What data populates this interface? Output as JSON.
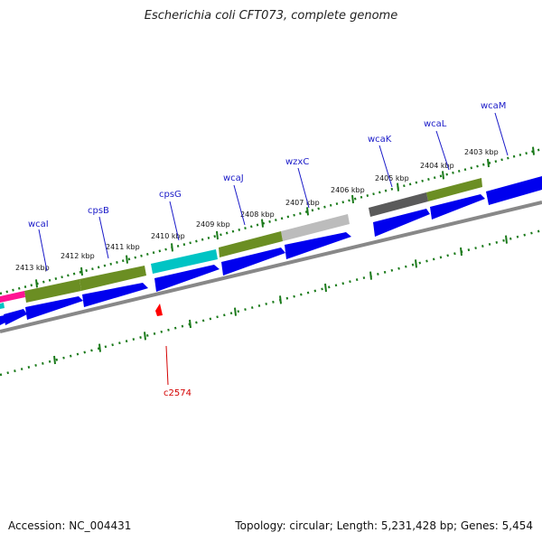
{
  "title": "Escherichia coli CFT073, complete genome",
  "footer": {
    "accession": "Accession: NC_004431",
    "summary": "Topology: circular; Length: 5,231,428 bp; Genes: 5,454"
  },
  "ticks": [
    {
      "label": "2403 kbp"
    },
    {
      "label": "2404 kbp"
    },
    {
      "label": "2405 kbp"
    },
    {
      "label": "2406 kbp"
    },
    {
      "label": "2407 kbp"
    },
    {
      "label": "2408 kbp"
    },
    {
      "label": "2409 kbp"
    },
    {
      "label": "2410 kbp"
    },
    {
      "label": "2411 kbp"
    },
    {
      "label": "2412 kbp"
    },
    {
      "label": "2413 kbp"
    }
  ],
  "genes": [
    {
      "name": "wcaM"
    },
    {
      "name": "wcaL"
    },
    {
      "name": "wcaK"
    },
    {
      "name": "wzxC"
    },
    {
      "name": "wcaJ"
    },
    {
      "name": "cpsG"
    },
    {
      "name": "cpsB"
    },
    {
      "name": "wcaI"
    },
    {
      "name": "c2574"
    }
  ],
  "colors": {
    "cds": "#0000ee",
    "olive": "#6b8e23",
    "cyan": "#00c8c8",
    "lightgray": "#bdbdbd",
    "darkgray": "#555555",
    "magenta": "#ff1493",
    "ruler": "#1a7a1a",
    "backbone": "#888888",
    "label_blue": "#1a1ac8",
    "label_red": "#d40000"
  }
}
